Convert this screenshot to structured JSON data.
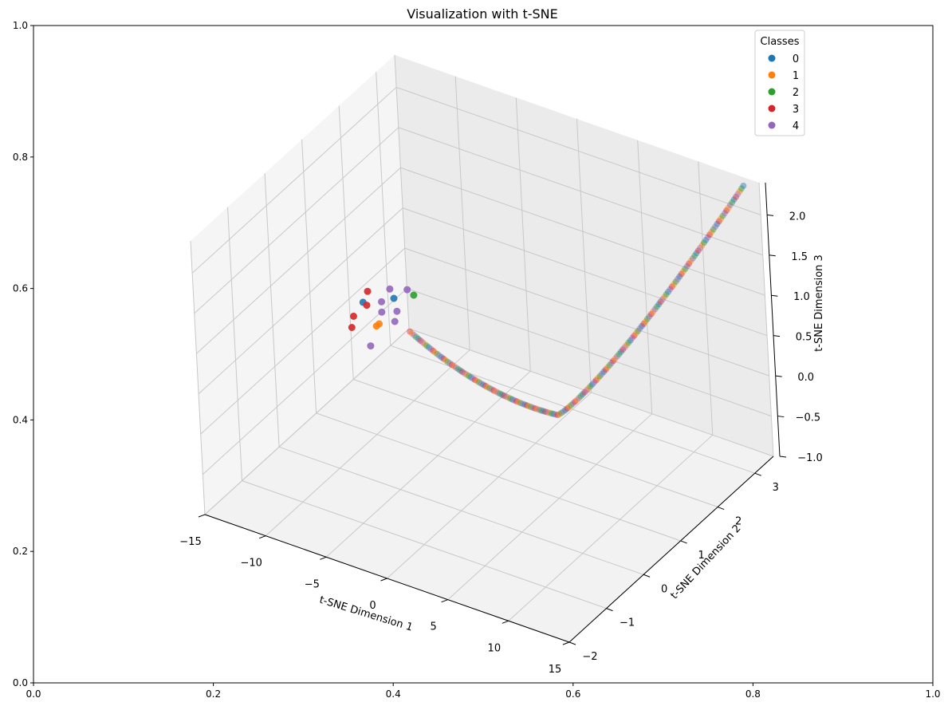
{
  "chart_data": {
    "type": "scatter",
    "projection": "3d",
    "title": "Visualization with t-SNE",
    "xlabel": "t-SNE Dimension 1",
    "ylabel": "t-SNE Dimension 2",
    "zlabel": "t-SNE Dimension 3",
    "xlim": [
      -15,
      15
    ],
    "ylim": [
      -2,
      3.5
    ],
    "zlim": [
      -1,
      2.4
    ],
    "xticks": [
      -15,
      -10,
      -5,
      0,
      5,
      10,
      15
    ],
    "yticks": [
      -2,
      -1,
      0,
      1,
      2,
      3
    ],
    "zticks": [
      -1.0,
      -0.5,
      0.0,
      0.5,
      1.0,
      1.5,
      2.0
    ],
    "grid": true,
    "legend": {
      "title": "Classes",
      "placement": "top-right",
      "entries": [
        {
          "label": "0",
          "color": "#1f77b4"
        },
        {
          "label": "1",
          "color": "#ff7f0e"
        },
        {
          "label": "2",
          "color": "#2ca02c"
        },
        {
          "label": "3",
          "color": "#d62728"
        },
        {
          "label": "4",
          "color": "#9467bd"
        }
      ]
    },
    "cluster_points": [
      {
        "x": -14.5,
        "y": 2.2,
        "z": -0.1,
        "cls": 0
      },
      {
        "x": -13.2,
        "y": 2.6,
        "z": -0.15,
        "cls": 0
      },
      {
        "x": -13.8,
        "y": 2.3,
        "z": -0.4,
        "cls": 1
      },
      {
        "x": -13.9,
        "y": 2.4,
        "z": -0.42,
        "cls": 1
      },
      {
        "x": -12.5,
        "y": 2.9,
        "z": -0.2,
        "cls": 2
      },
      {
        "x": -14.7,
        "y": 2.0,
        "z": -0.2,
        "cls": 3
      },
      {
        "x": -14.9,
        "y": 2.0,
        "z": -0.35,
        "cls": 3
      },
      {
        "x": -14.4,
        "y": 2.3,
        "z": 0.0,
        "cls": 3
      },
      {
        "x": -14.2,
        "y": 2.2,
        "z": -0.12,
        "cls": 3
      },
      {
        "x": -13.5,
        "y": 2.6,
        "z": -0.05,
        "cls": 4
      },
      {
        "x": -13.6,
        "y": 2.4,
        "z": -0.13,
        "cls": 4
      },
      {
        "x": -13.3,
        "y": 2.3,
        "z": -0.2,
        "cls": 4
      },
      {
        "x": -12.7,
        "y": 2.8,
        "z": -0.1,
        "cls": 4
      },
      {
        "x": -13.4,
        "y": 2.0,
        "z": -0.5,
        "cls": 4
      },
      {
        "x": -13.0,
        "y": 2.6,
        "z": -0.3,
        "cls": 4
      },
      {
        "x": -12.9,
        "y": 2.5,
        "z": -0.38,
        "cls": 4
      }
    ],
    "curve_points": {
      "count": 170,
      "x_range": [
        -12,
        14
      ],
      "y_range": [
        2.6,
        3.4
      ],
      "z_start": -0.5,
      "z_end": 2.35,
      "class_cycle": [
        3,
        1,
        4,
        2,
        0,
        3,
        4,
        1,
        2,
        0,
        4,
        3,
        1,
        2,
        4,
        0,
        3,
        1,
        2,
        4
      ]
    }
  },
  "figure_axes": {
    "xticks": [
      "0.0",
      "0.2",
      "0.4",
      "0.6",
      "0.8",
      "1.0"
    ],
    "yticks": [
      "0.0",
      "0.2",
      "0.4",
      "0.6",
      "0.8",
      "1.0"
    ]
  }
}
